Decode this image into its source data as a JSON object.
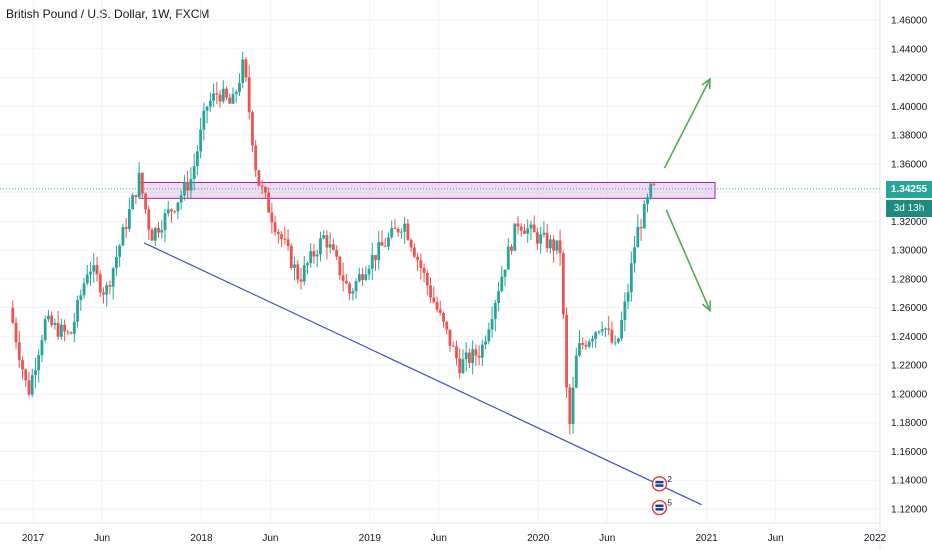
{
  "header": {
    "title": "British Pound / U.S. Dollar, 1W, FXCM"
  },
  "colors": {
    "bull": "#26a69a",
    "bear": "#ef5350",
    "grid": "#f0f3fa",
    "zone_fill": "#e1bee7",
    "zone_stroke": "#9c27b0",
    "trendline": "#3f51b5",
    "arrow": "#4caf50",
    "last_price": "#26a69a"
  },
  "chart_data": {
    "type": "candlestick",
    "instrument": "British Pound / U.S. Dollar",
    "timeframe": "1W",
    "source": "FXCM",
    "ylim": [
      1.11,
      1.47
    ],
    "y_ticks": [
      "1.12000",
      "1.14000",
      "1.16000",
      "1.18000",
      "1.20000",
      "1.22000",
      "1.24000",
      "1.26000",
      "1.28000",
      "1.30000",
      "1.32000",
      "1.34000",
      "1.36000",
      "1.38000",
      "1.40000",
      "1.42000",
      "1.44000",
      "1.46000"
    ],
    "x_ticks": [
      {
        "label": "2017",
        "t": 2017.0
      },
      {
        "label": "Jun",
        "t": 2017.41
      },
      {
        "label": "2018",
        "t": 2018.0
      },
      {
        "label": "Jun",
        "t": 2018.41
      },
      {
        "label": "2019",
        "t": 2019.0
      },
      {
        "label": "Jun",
        "t": 2019.41
      },
      {
        "label": "2020",
        "t": 2020.0
      },
      {
        "label": "Jun",
        "t": 2020.41
      },
      {
        "label": "2021",
        "t": 2021.0
      },
      {
        "label": "Jun",
        "t": 2021.41
      },
      {
        "label": "2022",
        "t": 2022.0
      }
    ],
    "xlim": [
      2016.88,
      2022.1
    ],
    "last_price": "1.34255",
    "countdown": "3d 13h",
    "anchors": [
      [
        2016.88,
        1.26
      ],
      [
        2016.99,
        1.2
      ],
      [
        2017.09,
        1.25
      ],
      [
        2017.24,
        1.24
      ],
      [
        2017.35,
        1.29
      ],
      [
        2017.45,
        1.27
      ],
      [
        2017.55,
        1.31
      ],
      [
        2017.65,
        1.35
      ],
      [
        2017.72,
        1.31
      ],
      [
        2017.85,
        1.33
      ],
      [
        2017.96,
        1.35
      ],
      [
        2018.05,
        1.4
      ],
      [
        2018.12,
        1.41
      ],
      [
        2018.2,
        1.4
      ],
      [
        2018.27,
        1.43
      ],
      [
        2018.35,
        1.35
      ],
      [
        2018.45,
        1.32
      ],
      [
        2018.6,
        1.28
      ],
      [
        2018.75,
        1.31
      ],
      [
        2018.9,
        1.27
      ],
      [
        2019.0,
        1.29
      ],
      [
        2019.15,
        1.31
      ],
      [
        2019.22,
        1.32
      ],
      [
        2019.38,
        1.27
      ],
      [
        2019.55,
        1.22
      ],
      [
        2019.68,
        1.23
      ],
      [
        2019.82,
        1.29
      ],
      [
        2019.9,
        1.32
      ],
      [
        2020.0,
        1.31
      ],
      [
        2020.15,
        1.3
      ],
      [
        2020.2,
        1.17
      ],
      [
        2020.25,
        1.23
      ],
      [
        2020.4,
        1.25
      ],
      [
        2020.48,
        1.23
      ],
      [
        2020.55,
        1.27
      ],
      [
        2020.6,
        1.31
      ],
      [
        2020.66,
        1.33
      ],
      [
        2020.69,
        1.342
      ]
    ],
    "annotations": {
      "resistance_zone": {
        "y_top": 1.347,
        "y_bottom": 1.336,
        "t_start": 2017.63,
        "t_end": 2021.05
      },
      "trendline": {
        "start": [
          2017.66,
          1.305
        ],
        "end": [
          2020.97,
          1.123
        ]
      },
      "arrow_up": {
        "from": [
          2020.75,
          1.357
        ],
        "to": [
          2021.02,
          1.419
        ]
      },
      "arrow_down": {
        "from": [
          2020.76,
          1.328
        ],
        "to": [
          2021.02,
          1.258
        ]
      },
      "event_markers": [
        {
          "t": 2020.72,
          "y": 1.1375,
          "count": "2"
        },
        {
          "t": 2020.72,
          "y": 1.121,
          "count": "5"
        }
      ]
    }
  }
}
